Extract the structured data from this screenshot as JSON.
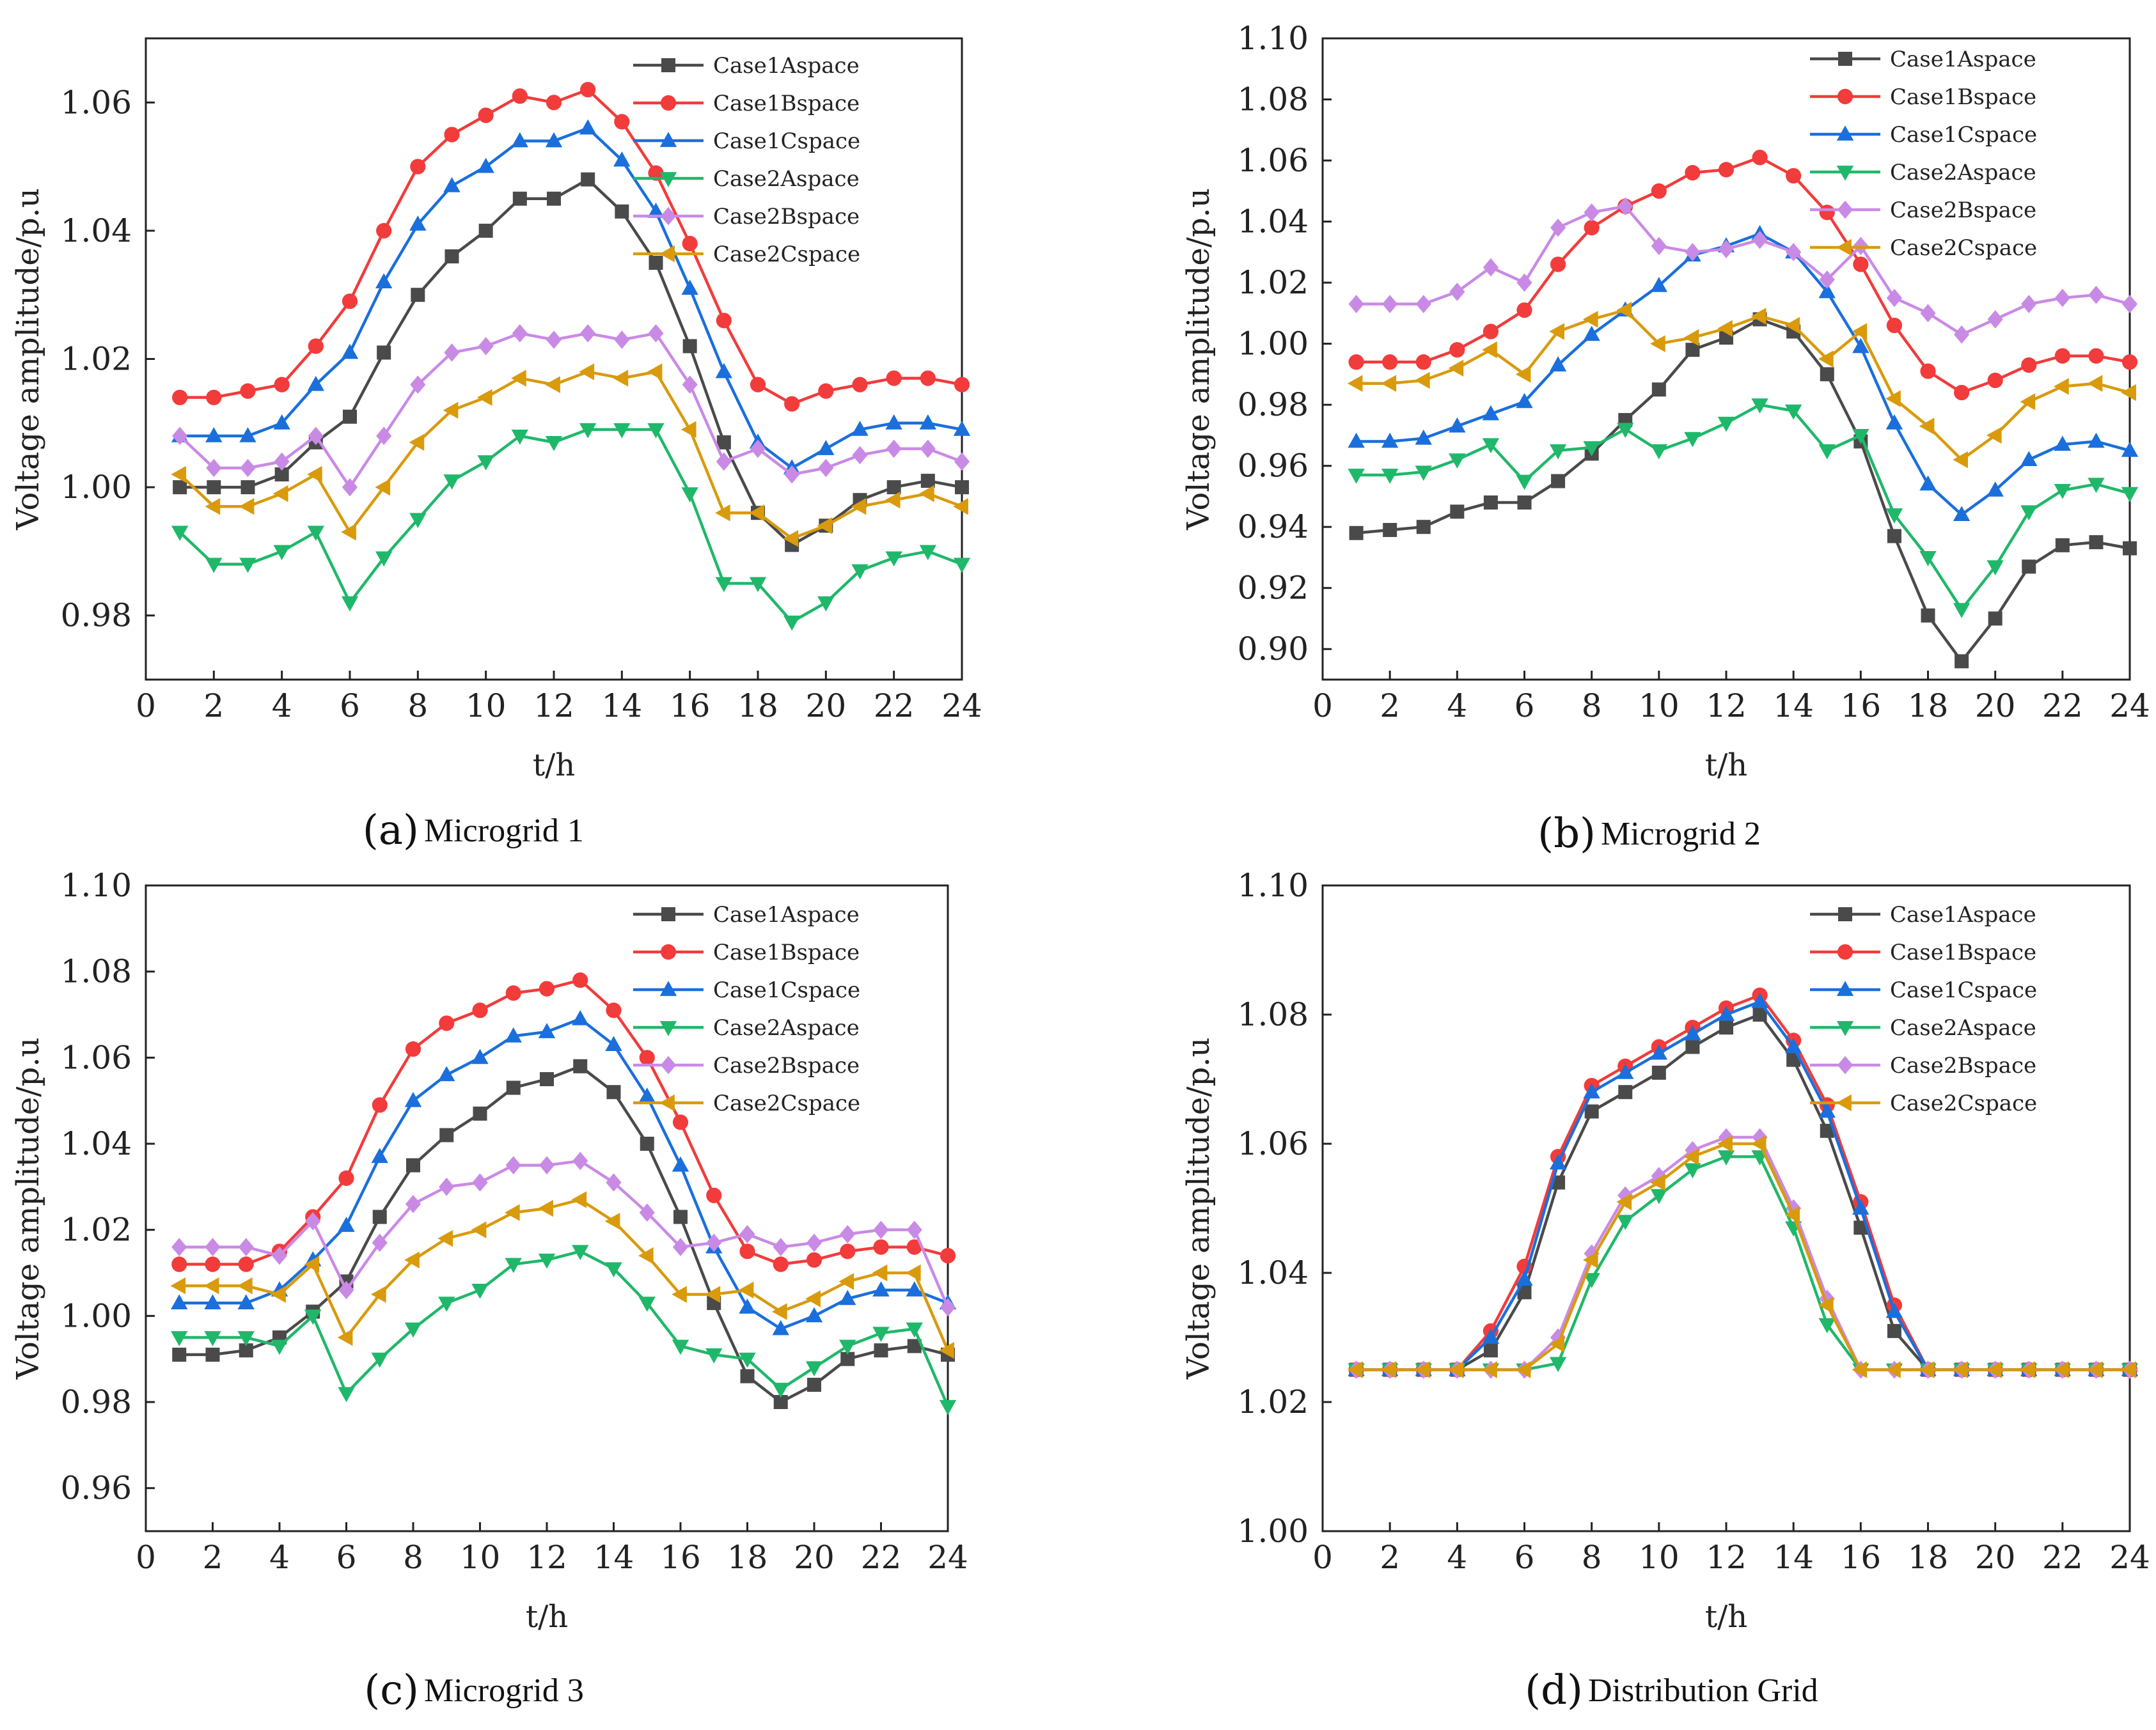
{
  "figure": {
    "series_colors": {
      "Case1Aspace": "#4a4a4a",
      "Case1Bspace": "#f23b3b",
      "Case1Cspace": "#1a6fdc",
      "Case2Aspace": "#1fb86a",
      "Case2Bspace": "#c98ae6",
      "Case2Cspace": "#d99a0c"
    },
    "series_markers": {
      "Case1Aspace": "square",
      "Case1Bspace": "circle",
      "Case1Cspace": "triangle-up",
      "Case2Aspace": "triangle-down",
      "Case2Bspace": "diamond",
      "Case2Cspace": "triangle-left"
    }
  },
  "chart_data": [
    {
      "type": "line",
      "caption_letter": "(a)",
      "caption_name": "Microgrid 1",
      "xlabel": "t/h",
      "ylabel": "Voltage amplitude/p.u",
      "xlim": [
        0,
        24
      ],
      "ylim": [
        0.97,
        1.07
      ],
      "xticks": [
        0,
        2,
        4,
        6,
        8,
        10,
        12,
        14,
        16,
        18,
        20,
        22,
        24
      ],
      "xtick_labels": [
        "0",
        "2",
        "4",
        "6",
        "8",
        "10",
        "12",
        "14",
        "16",
        "18",
        "20",
        "22",
        "24"
      ],
      "yticks": [
        0.98,
        1.0,
        1.02,
        1.04,
        1.06
      ],
      "ytick_labels": [
        "0.98",
        "1.00",
        "1.02",
        "1.04",
        "1.06"
      ],
      "legend_position": "top-right",
      "x": [
        1,
        2,
        3,
        4,
        5,
        6,
        7,
        8,
        9,
        10,
        11,
        12,
        13,
        14,
        15,
        16,
        17,
        18,
        19,
        20,
        21,
        22,
        23,
        24
      ],
      "series": [
        {
          "name": "Case1Aspace",
          "values": [
            1.0,
            1.0,
            1.0,
            1.002,
            1.007,
            1.011,
            1.021,
            1.03,
            1.036,
            1.04,
            1.045,
            1.045,
            1.048,
            1.043,
            1.035,
            1.022,
            1.007,
            0.996,
            0.991,
            0.994,
            0.998,
            1.0,
            1.001,
            1.0
          ]
        },
        {
          "name": "Case1Bspace",
          "values": [
            1.014,
            1.014,
            1.015,
            1.016,
            1.022,
            1.029,
            1.04,
            1.05,
            1.055,
            1.058,
            1.061,
            1.06,
            1.062,
            1.057,
            1.049,
            1.038,
            1.026,
            1.016,
            1.013,
            1.015,
            1.016,
            1.017,
            1.017,
            1.016
          ]
        },
        {
          "name": "Case1Cspace",
          "values": [
            1.008,
            1.008,
            1.008,
            1.01,
            1.016,
            1.021,
            1.032,
            1.041,
            1.047,
            1.05,
            1.054,
            1.054,
            1.056,
            1.051,
            1.043,
            1.031,
            1.018,
            1.007,
            1.003,
            1.006,
            1.009,
            1.01,
            1.01,
            1.009
          ]
        },
        {
          "name": "Case2Aspace",
          "values": [
            0.993,
            0.988,
            0.988,
            0.99,
            0.993,
            0.982,
            0.989,
            0.995,
            1.001,
            1.004,
            1.008,
            1.007,
            1.009,
            1.009,
            1.009,
            0.999,
            0.985,
            0.985,
            0.979,
            0.982,
            0.987,
            0.989,
            0.99,
            0.988
          ]
        },
        {
          "name": "Case2Bspace",
          "values": [
            1.008,
            1.003,
            1.003,
            1.004,
            1.008,
            1.0,
            1.008,
            1.016,
            1.021,
            1.022,
            1.024,
            1.023,
            1.024,
            1.023,
            1.024,
            1.016,
            1.004,
            1.006,
            1.002,
            1.003,
            1.005,
            1.006,
            1.006,
            1.004
          ]
        },
        {
          "name": "Case2Cspace",
          "values": [
            1.002,
            0.997,
            0.997,
            0.999,
            1.002,
            0.993,
            1.0,
            1.007,
            1.012,
            1.014,
            1.017,
            1.016,
            1.018,
            1.017,
            1.018,
            1.009,
            0.996,
            0.996,
            0.992,
            0.994,
            0.997,
            0.998,
            0.999,
            0.997
          ]
        }
      ]
    },
    {
      "type": "line",
      "caption_letter": "(b)",
      "caption_name": "Microgrid 2",
      "xlabel": "t/h",
      "ylabel": "Voltage amplitude/p.u",
      "xlim": [
        0,
        24
      ],
      "ylim": [
        0.89,
        1.1
      ],
      "xticks": [
        0,
        2,
        4,
        6,
        8,
        10,
        12,
        14,
        16,
        18,
        20,
        22,
        24
      ],
      "xtick_labels": [
        "0",
        "2",
        "4",
        "6",
        "8",
        "10",
        "12",
        "14",
        "16",
        "18",
        "20",
        "22",
        "24"
      ],
      "yticks": [
        0.9,
        0.92,
        0.94,
        0.96,
        0.98,
        1.0,
        1.02,
        1.04,
        1.06,
        1.08,
        1.1
      ],
      "ytick_labels": [
        "0.90",
        "0.92",
        "0.94",
        "0.96",
        "0.98",
        "1.00",
        "1.02",
        "1.04",
        "1.06",
        "1.08",
        "1.10"
      ],
      "legend_position": "top-right",
      "x": [
        1,
        2,
        3,
        4,
        5,
        6,
        7,
        8,
        9,
        10,
        11,
        12,
        13,
        14,
        15,
        16,
        17,
        18,
        19,
        20,
        21,
        22,
        23,
        24
      ],
      "series": [
        {
          "name": "Case1Aspace",
          "values": [
            0.938,
            0.939,
            0.94,
            0.945,
            0.948,
            0.948,
            0.955,
            0.964,
            0.975,
            0.985,
            0.998,
            1.002,
            1.008,
            1.004,
            0.99,
            0.968,
            0.937,
            0.911,
            0.896,
            0.91,
            0.927,
            0.934,
            0.935,
            0.933
          ]
        },
        {
          "name": "Case1Bspace",
          "values": [
            0.994,
            0.994,
            0.994,
            0.998,
            1.004,
            1.011,
            1.026,
            1.038,
            1.045,
            1.05,
            1.056,
            1.057,
            1.061,
            1.055,
            1.043,
            1.026,
            1.006,
            0.991,
            0.984,
            0.988,
            0.993,
            0.996,
            0.996,
            0.994
          ]
        },
        {
          "name": "Case1Cspace",
          "values": [
            0.968,
            0.968,
            0.969,
            0.973,
            0.977,
            0.981,
            0.993,
            1.003,
            1.011,
            1.019,
            1.029,
            1.032,
            1.036,
            1.03,
            1.017,
            0.999,
            0.974,
            0.954,
            0.944,
            0.952,
            0.962,
            0.967,
            0.968,
            0.965
          ]
        },
        {
          "name": "Case2Aspace",
          "values": [
            0.957,
            0.957,
            0.958,
            0.962,
            0.967,
            0.955,
            0.965,
            0.966,
            0.972,
            0.965,
            0.969,
            0.974,
            0.98,
            0.978,
            0.965,
            0.97,
            0.944,
            0.93,
            0.913,
            0.927,
            0.945,
            0.952,
            0.954,
            0.951
          ]
        },
        {
          "name": "Case2Bspace",
          "values": [
            1.013,
            1.013,
            1.013,
            1.017,
            1.025,
            1.02,
            1.038,
            1.043,
            1.045,
            1.032,
            1.03,
            1.031,
            1.034,
            1.03,
            1.021,
            1.032,
            1.015,
            1.01,
            1.003,
            1.008,
            1.013,
            1.015,
            1.016,
            1.013
          ]
        },
        {
          "name": "Case2Cspace",
          "values": [
            0.987,
            0.987,
            0.988,
            0.992,
            0.998,
            0.99,
            1.004,
            1.008,
            1.011,
            1.0,
            1.002,
            1.005,
            1.009,
            1.006,
            0.995,
            1.004,
            0.982,
            0.973,
            0.962,
            0.97,
            0.981,
            0.986,
            0.987,
            0.984
          ]
        }
      ]
    },
    {
      "type": "line",
      "caption_letter": "(c)",
      "caption_name": "Microgrid 3",
      "xlabel": "t/h",
      "ylabel": "Voltage amplitude/p.u",
      "xlim": [
        0,
        24
      ],
      "ylim": [
        0.95,
        1.1
      ],
      "xticks": [
        0,
        2,
        4,
        6,
        8,
        10,
        12,
        14,
        16,
        18,
        20,
        22,
        24
      ],
      "xtick_labels": [
        "0",
        "2",
        "4",
        "6",
        "8",
        "10",
        "12",
        "14",
        "16",
        "18",
        "20",
        "22",
        "24"
      ],
      "yticks": [
        0.96,
        0.98,
        1.0,
        1.02,
        1.04,
        1.06,
        1.08,
        1.1
      ],
      "ytick_labels": [
        "0.96",
        "0.98",
        "1.00",
        "1.02",
        "1.04",
        "1.06",
        "1.08",
        "1.10"
      ],
      "legend_position": "top-right",
      "x": [
        1,
        2,
        3,
        4,
        5,
        6,
        7,
        8,
        9,
        10,
        11,
        12,
        13,
        14,
        15,
        16,
        17,
        18,
        19,
        20,
        21,
        22,
        23,
        24
      ],
      "series": [
        {
          "name": "Case1Aspace",
          "values": [
            0.991,
            0.991,
            0.992,
            0.995,
            1.001,
            1.008,
            1.023,
            1.035,
            1.042,
            1.047,
            1.053,
            1.055,
            1.058,
            1.052,
            1.04,
            1.023,
            1.003,
            0.986,
            0.98,
            0.984,
            0.99,
            0.992,
            0.993,
            0.991
          ]
        },
        {
          "name": "Case1Bspace",
          "values": [
            1.012,
            1.012,
            1.012,
            1.015,
            1.023,
            1.032,
            1.049,
            1.062,
            1.068,
            1.071,
            1.075,
            1.076,
            1.078,
            1.071,
            1.06,
            1.045,
            1.028,
            1.015,
            1.012,
            1.013,
            1.015,
            1.016,
            1.016,
            1.014
          ]
        },
        {
          "name": "Case1Cspace",
          "values": [
            1.003,
            1.003,
            1.003,
            1.006,
            1.013,
            1.021,
            1.037,
            1.05,
            1.056,
            1.06,
            1.065,
            1.066,
            1.069,
            1.063,
            1.051,
            1.035,
            1.016,
            1.002,
            0.997,
            1.0,
            1.004,
            1.006,
            1.006,
            1.003
          ]
        },
        {
          "name": "Case2Aspace",
          "values": [
            0.995,
            0.995,
            0.995,
            0.993,
            1.0,
            0.982,
            0.99,
            0.997,
            1.003,
            1.006,
            1.012,
            1.013,
            1.015,
            1.011,
            1.003,
            0.993,
            0.991,
            0.99,
            0.983,
            0.988,
            0.993,
            0.996,
            0.997,
            0.979
          ]
        },
        {
          "name": "Case2Bspace",
          "values": [
            1.016,
            1.016,
            1.016,
            1.014,
            1.022,
            1.006,
            1.017,
            1.026,
            1.03,
            1.031,
            1.035,
            1.035,
            1.036,
            1.031,
            1.024,
            1.016,
            1.017,
            1.019,
            1.016,
            1.017,
            1.019,
            1.02,
            1.02,
            1.002
          ]
        },
        {
          "name": "Case2Cspace",
          "values": [
            1.007,
            1.007,
            1.007,
            1.005,
            1.012,
            0.995,
            1.005,
            1.013,
            1.018,
            1.02,
            1.024,
            1.025,
            1.027,
            1.022,
            1.014,
            1.005,
            1.005,
            1.006,
            1.001,
            1.004,
            1.008,
            1.01,
            1.01,
            0.992
          ]
        }
      ]
    },
    {
      "type": "line",
      "caption_letter": "(d)",
      "caption_name": "Distribution Grid",
      "xlabel": "t/h",
      "ylabel": "Voltage amplitude/p.u",
      "xlim": [
        0,
        24
      ],
      "ylim": [
        1.0,
        1.1
      ],
      "xticks": [
        0,
        2,
        4,
        6,
        8,
        10,
        12,
        14,
        16,
        18,
        20,
        22,
        24
      ],
      "xtick_labels": [
        "0",
        "2",
        "4",
        "6",
        "8",
        "10",
        "12",
        "14",
        "16",
        "18",
        "20",
        "22",
        "24"
      ],
      "yticks": [
        1.0,
        1.02,
        1.04,
        1.06,
        1.08,
        1.1
      ],
      "ytick_labels": [
        "1.00",
        "1.02",
        "1.04",
        "1.06",
        "1.08",
        "1.10"
      ],
      "legend_position": "top-right",
      "x": [
        1,
        2,
        3,
        4,
        5,
        6,
        7,
        8,
        9,
        10,
        11,
        12,
        13,
        14,
        15,
        16,
        17,
        18,
        19,
        20,
        21,
        22,
        23,
        24
      ],
      "series": [
        {
          "name": "Case1Aspace",
          "values": [
            1.025,
            1.025,
            1.025,
            1.025,
            1.028,
            1.037,
            1.054,
            1.065,
            1.068,
            1.071,
            1.075,
            1.078,
            1.08,
            1.073,
            1.062,
            1.047,
            1.031,
            1.025,
            1.025,
            1.025,
            1.025,
            1.025,
            1.025,
            1.025
          ]
        },
        {
          "name": "Case1Bspace",
          "values": [
            1.025,
            1.025,
            1.025,
            1.025,
            1.031,
            1.041,
            1.058,
            1.069,
            1.072,
            1.075,
            1.078,
            1.081,
            1.083,
            1.076,
            1.066,
            1.051,
            1.035,
            1.025,
            1.025,
            1.025,
            1.025,
            1.025,
            1.025,
            1.025
          ]
        },
        {
          "name": "Case1Cspace",
          "values": [
            1.025,
            1.025,
            1.025,
            1.025,
            1.03,
            1.039,
            1.057,
            1.068,
            1.071,
            1.074,
            1.077,
            1.08,
            1.082,
            1.075,
            1.065,
            1.05,
            1.034,
            1.025,
            1.025,
            1.025,
            1.025,
            1.025,
            1.025,
            1.025
          ]
        },
        {
          "name": "Case2Aspace",
          "values": [
            1.025,
            1.025,
            1.025,
            1.025,
            1.025,
            1.025,
            1.026,
            1.039,
            1.048,
            1.052,
            1.056,
            1.058,
            1.058,
            1.047,
            1.032,
            1.025,
            1.025,
            1.025,
            1.025,
            1.025,
            1.025,
            1.025,
            1.025,
            1.025
          ]
        },
        {
          "name": "Case2Bspace",
          "values": [
            1.025,
            1.025,
            1.025,
            1.025,
            1.025,
            1.025,
            1.03,
            1.043,
            1.052,
            1.055,
            1.059,
            1.061,
            1.061,
            1.05,
            1.036,
            1.025,
            1.025,
            1.025,
            1.025,
            1.025,
            1.025,
            1.025,
            1.025,
            1.025
          ]
        },
        {
          "name": "Case2Cspace",
          "values": [
            1.025,
            1.025,
            1.025,
            1.025,
            1.025,
            1.025,
            1.029,
            1.042,
            1.051,
            1.054,
            1.058,
            1.06,
            1.06,
            1.049,
            1.035,
            1.025,
            1.025,
            1.025,
            1.025,
            1.025,
            1.025,
            1.025,
            1.025,
            1.025
          ]
        }
      ]
    }
  ]
}
